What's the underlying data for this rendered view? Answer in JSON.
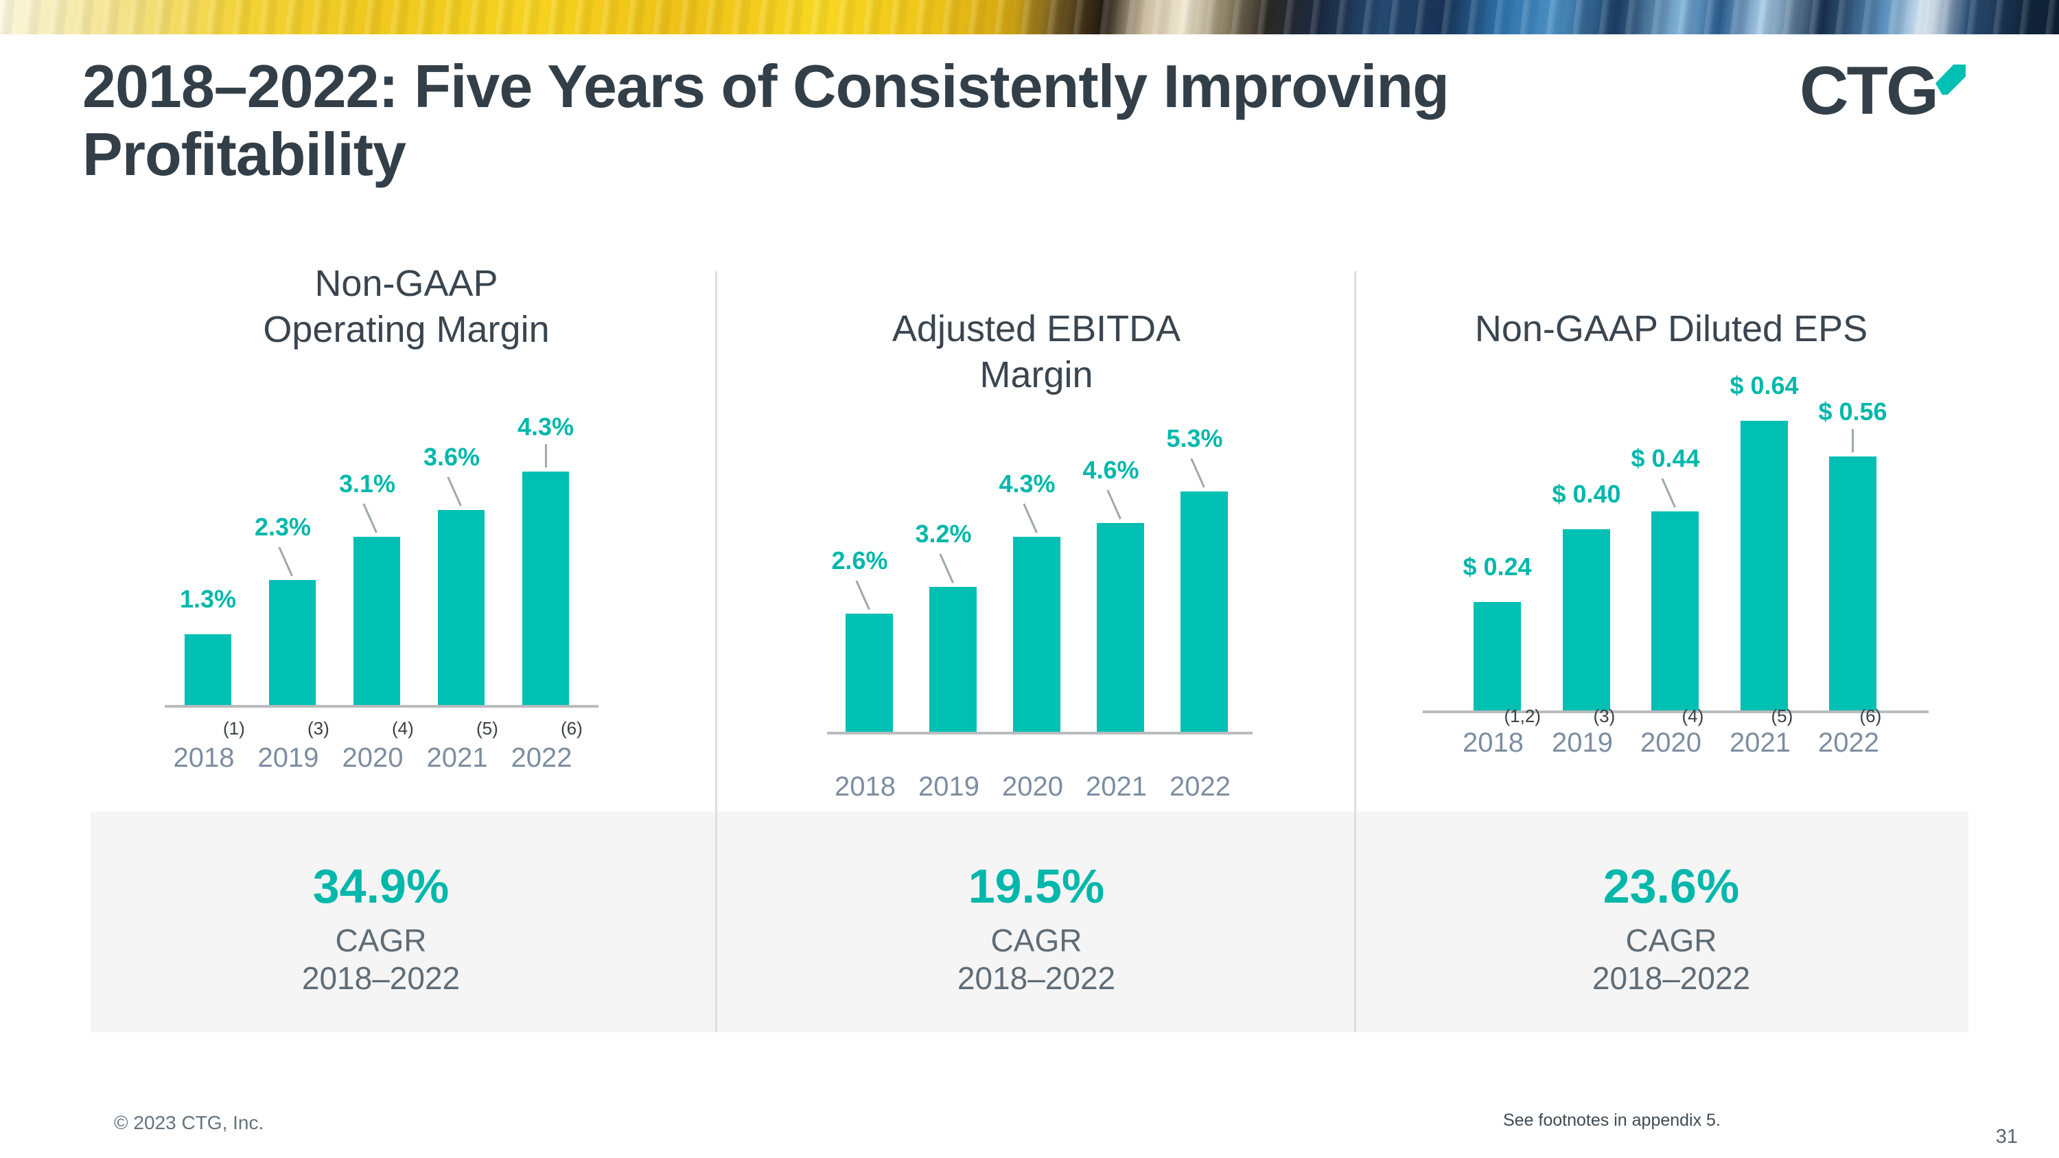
{
  "slide": {
    "title_lines": [
      "2018–2022: Five Years of Consistently Improving",
      "Profitability"
    ],
    "logo_text": "CTG",
    "copyright": "© 2023 CTG, Inc.",
    "footnote_ref": "See footnotes in appendix 5.",
    "page_number": "31"
  },
  "colors": {
    "teal": "#00BFB3",
    "dark_slate": "#333F48",
    "year_gray": "#7D8DA1",
    "axis_gray": "#B8BCBE",
    "band_bg": "#F5F5F5",
    "divider": "#DEDEDE"
  },
  "chart_data": [
    {
      "type": "bar",
      "title_lines": [
        "Non-GAAP",
        "Operating Margin"
      ],
      "categories": [
        "2018",
        "2019",
        "2020",
        "2021",
        "2022"
      ],
      "category_footnotes": [
        "(1)",
        "(3)",
        "(4)",
        "(5)",
        "(6)"
      ],
      "values": [
        1.3,
        2.3,
        3.1,
        3.6,
        4.3
      ],
      "value_labels": [
        "1.3%",
        "2.3%",
        "3.1%",
        "3.6%",
        "4.3%"
      ],
      "ylim": [
        0,
        5
      ],
      "grid": false,
      "legend": "none",
      "cagr": {
        "value": "34.9%",
        "label": "CAGR",
        "range": "2018–2022"
      }
    },
    {
      "type": "bar",
      "title_lines": [
        "Adjusted EBITDA",
        "Margin"
      ],
      "categories": [
        "2018",
        "2019",
        "2020",
        "2021",
        "2022"
      ],
      "category_footnotes": null,
      "values": [
        2.6,
        3.2,
        4.3,
        4.6,
        5.3
      ],
      "value_labels": [
        "2.6%",
        "3.2%",
        "4.3%",
        "4.6%",
        "5.3%"
      ],
      "ylim": [
        0,
        6
      ],
      "grid": false,
      "legend": "none",
      "cagr": {
        "value": "19.5%",
        "label": "CAGR",
        "range": "2018–2022"
      }
    },
    {
      "type": "bar",
      "title_lines": [
        "Non-GAAP Diluted EPS"
      ],
      "categories": [
        "2018",
        "2019",
        "2020",
        "2021",
        "2022"
      ],
      "category_footnotes": [
        "(1,2)",
        "(3)",
        "(4)",
        "(5)",
        "(6)"
      ],
      "values": [
        0.24,
        0.4,
        0.44,
        0.64,
        0.56
      ],
      "value_labels": [
        "$ 0.24",
        "$ 0.40",
        "$ 0.44",
        "$ 0.64",
        "$ 0.56"
      ],
      "ylim": [
        0,
        0.7
      ],
      "grid": false,
      "legend": "none",
      "cagr": {
        "value": "23.6%",
        "label": "CAGR",
        "range": "2018–2022"
      }
    }
  ]
}
